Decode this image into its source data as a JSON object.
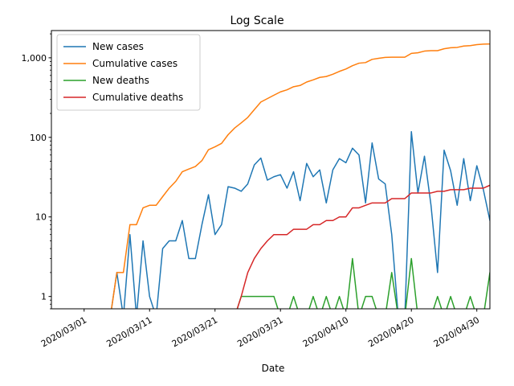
{
  "chart_data": {
    "type": "line",
    "title": "Log Scale",
    "xlabel": "Date",
    "ylabel": "",
    "yscale": "log",
    "xlim": [
      "2020-02-25",
      "2020-05-02"
    ],
    "ylim": [
      0.7,
      2200
    ],
    "x_ticks": [
      "2020/03/01",
      "2020/03/11",
      "2020/03/21",
      "2020/03/31",
      "2020/04/10",
      "2020/04/20",
      "2020/04/30"
    ],
    "y_ticks": [
      {
        "value": 1,
        "label": "1"
      },
      {
        "value": 10,
        "label": "10"
      },
      {
        "value": 100,
        "label": "100"
      },
      {
        "value": 1000,
        "label": "1,000"
      }
    ],
    "legend_position": "top-left",
    "grid": false,
    "series": [
      {
        "name": "New cases",
        "color": "#1f77b4",
        "points": [
          [
            "2020-03-05",
            0
          ],
          [
            "2020-03-06",
            2
          ],
          [
            "2020-03-07",
            0
          ],
          [
            "2020-03-08",
            6
          ],
          [
            "2020-03-09",
            0
          ],
          [
            "2020-03-10",
            5
          ],
          [
            "2020-03-11",
            1
          ],
          [
            "2020-03-12",
            0
          ],
          [
            "2020-03-13",
            4
          ],
          [
            "2020-03-14",
            5
          ],
          [
            "2020-03-15",
            5
          ],
          [
            "2020-03-16",
            9
          ],
          [
            "2020-03-17",
            3
          ],
          [
            "2020-03-18",
            3
          ],
          [
            "2020-03-19",
            8
          ],
          [
            "2020-03-20",
            19
          ],
          [
            "2020-03-21",
            6
          ],
          [
            "2020-03-22",
            8
          ],
          [
            "2020-03-23",
            24
          ],
          [
            "2020-03-24",
            23
          ],
          [
            "2020-03-25",
            21
          ],
          [
            "2020-03-26",
            26
          ],
          [
            "2020-03-27",
            45
          ],
          [
            "2020-03-28",
            55
          ],
          [
            "2020-03-29",
            29
          ],
          [
            "2020-03-30",
            32
          ],
          [
            "2020-03-31",
            34
          ],
          [
            "2020-04-01",
            23
          ],
          [
            "2020-04-02",
            37
          ],
          [
            "2020-04-03",
            16
          ],
          [
            "2020-04-04",
            47
          ],
          [
            "2020-04-05",
            32
          ],
          [
            "2020-04-06",
            39
          ],
          [
            "2020-04-07",
            15
          ],
          [
            "2020-04-08",
            39
          ],
          [
            "2020-04-09",
            54
          ],
          [
            "2020-04-10",
            48
          ],
          [
            "2020-04-11",
            73
          ],
          [
            "2020-04-12",
            60
          ],
          [
            "2020-04-13",
            15
          ],
          [
            "2020-04-14",
            85
          ],
          [
            "2020-04-15",
            30
          ],
          [
            "2020-04-16",
            26
          ],
          [
            "2020-04-17",
            6
          ],
          [
            "2020-04-18",
            0
          ],
          [
            "2020-04-19",
            0
          ],
          [
            "2020-04-20",
            118
          ],
          [
            "2020-04-21",
            20
          ],
          [
            "2020-04-22",
            58
          ],
          [
            "2020-04-23",
            14
          ],
          [
            "2020-04-24",
            2
          ],
          [
            "2020-04-25",
            69
          ],
          [
            "2020-04-26",
            38
          ],
          [
            "2020-04-27",
            14
          ],
          [
            "2020-04-28",
            54
          ],
          [
            "2020-04-29",
            16
          ],
          [
            "2020-04-30",
            44
          ],
          [
            "2020-05-01",
            22
          ],
          [
            "2020-05-02",
            9
          ],
          [
            "2020-05-03",
            24
          ]
        ]
      },
      {
        "name": "Cumulative cases",
        "color": "#ff7f0e",
        "points": [
          [
            "2020-03-05",
            0
          ],
          [
            "2020-03-06",
            2
          ],
          [
            "2020-03-07",
            2
          ],
          [
            "2020-03-08",
            8
          ],
          [
            "2020-03-09",
            8
          ],
          [
            "2020-03-10",
            13
          ],
          [
            "2020-03-11",
            14
          ],
          [
            "2020-03-12",
            14
          ],
          [
            "2020-03-13",
            18
          ],
          [
            "2020-03-14",
            23
          ],
          [
            "2020-03-15",
            28
          ],
          [
            "2020-03-16",
            37
          ],
          [
            "2020-03-17",
            40
          ],
          [
            "2020-03-18",
            43
          ],
          [
            "2020-03-19",
            51
          ],
          [
            "2020-03-20",
            70
          ],
          [
            "2020-03-21",
            76
          ],
          [
            "2020-03-22",
            84
          ],
          [
            "2020-03-23",
            108
          ],
          [
            "2020-03-24",
            131
          ],
          [
            "2020-03-25",
            152
          ],
          [
            "2020-03-26",
            178
          ],
          [
            "2020-03-27",
            223
          ],
          [
            "2020-03-28",
            278
          ],
          [
            "2020-03-29",
            307
          ],
          [
            "2020-03-30",
            339
          ],
          [
            "2020-03-31",
            373
          ],
          [
            "2020-04-01",
            396
          ],
          [
            "2020-04-02",
            433
          ],
          [
            "2020-04-03",
            449
          ],
          [
            "2020-04-04",
            496
          ],
          [
            "2020-04-05",
            528
          ],
          [
            "2020-04-06",
            567
          ],
          [
            "2020-04-07",
            582
          ],
          [
            "2020-04-08",
            621
          ],
          [
            "2020-04-09",
            675
          ],
          [
            "2020-04-10",
            723
          ],
          [
            "2020-04-11",
            796
          ],
          [
            "2020-04-12",
            856
          ],
          [
            "2020-04-13",
            871
          ],
          [
            "2020-04-14",
            956
          ],
          [
            "2020-04-15",
            986
          ],
          [
            "2020-04-16",
            1012
          ],
          [
            "2020-04-17",
            1018
          ],
          [
            "2020-04-18",
            1018
          ],
          [
            "2020-04-19",
            1018
          ],
          [
            "2020-04-20",
            1136
          ],
          [
            "2020-04-21",
            1156
          ],
          [
            "2020-04-22",
            1214
          ],
          [
            "2020-04-23",
            1228
          ],
          [
            "2020-04-24",
            1230
          ],
          [
            "2020-04-25",
            1299
          ],
          [
            "2020-04-26",
            1337
          ],
          [
            "2020-04-27",
            1351
          ],
          [
            "2020-04-28",
            1405
          ],
          [
            "2020-04-29",
            1421
          ],
          [
            "2020-04-30",
            1465
          ],
          [
            "2020-05-01",
            1487
          ],
          [
            "2020-05-02",
            1496
          ],
          [
            "2020-05-03",
            1520
          ]
        ]
      },
      {
        "name": "New deaths",
        "color": "#2ca02c",
        "points": [
          [
            "2020-03-24",
            0
          ],
          [
            "2020-03-25",
            1
          ],
          [
            "2020-03-26",
            1
          ],
          [
            "2020-03-27",
            1
          ],
          [
            "2020-03-28",
            1
          ],
          [
            "2020-03-29",
            1
          ],
          [
            "2020-03-30",
            1
          ],
          [
            "2020-03-31",
            0
          ],
          [
            "2020-04-01",
            0
          ],
          [
            "2020-04-02",
            1
          ],
          [
            "2020-04-03",
            0
          ],
          [
            "2020-04-04",
            0
          ],
          [
            "2020-04-05",
            1
          ],
          [
            "2020-04-06",
            0
          ],
          [
            "2020-04-07",
            1
          ],
          [
            "2020-04-08",
            0
          ],
          [
            "2020-04-09",
            1
          ],
          [
            "2020-04-10",
            0
          ],
          [
            "2020-04-11",
            3
          ],
          [
            "2020-04-12",
            0
          ],
          [
            "2020-04-13",
            1
          ],
          [
            "2020-04-14",
            1
          ],
          [
            "2020-04-15",
            0
          ],
          [
            "2020-04-16",
            0
          ],
          [
            "2020-04-17",
            2
          ],
          [
            "2020-04-18",
            0
          ],
          [
            "2020-04-19",
            0
          ],
          [
            "2020-04-20",
            3
          ],
          [
            "2020-04-21",
            0
          ],
          [
            "2020-04-22",
            0
          ],
          [
            "2020-04-23",
            0
          ],
          [
            "2020-04-24",
            1
          ],
          [
            "2020-04-25",
            0
          ],
          [
            "2020-04-26",
            1
          ],
          [
            "2020-04-27",
            0
          ],
          [
            "2020-04-28",
            0
          ],
          [
            "2020-04-29",
            1
          ],
          [
            "2020-04-30",
            0
          ],
          [
            "2020-05-01",
            0
          ],
          [
            "2020-05-02",
            2
          ],
          [
            "2020-05-03",
            3
          ]
        ]
      },
      {
        "name": "Cumulative deaths",
        "color": "#d62728",
        "points": [
          [
            "2020-03-24",
            0
          ],
          [
            "2020-03-25",
            1
          ],
          [
            "2020-03-26",
            2
          ],
          [
            "2020-03-27",
            3
          ],
          [
            "2020-03-28",
            4
          ],
          [
            "2020-03-29",
            5
          ],
          [
            "2020-03-30",
            6
          ],
          [
            "2020-03-31",
            6
          ],
          [
            "2020-04-01",
            6
          ],
          [
            "2020-04-02",
            7
          ],
          [
            "2020-04-03",
            7
          ],
          [
            "2020-04-04",
            7
          ],
          [
            "2020-04-05",
            8
          ],
          [
            "2020-04-06",
            8
          ],
          [
            "2020-04-07",
            9
          ],
          [
            "2020-04-08",
            9
          ],
          [
            "2020-04-09",
            10
          ],
          [
            "2020-04-10",
            10
          ],
          [
            "2020-04-11",
            13
          ],
          [
            "2020-04-12",
            13
          ],
          [
            "2020-04-13",
            14
          ],
          [
            "2020-04-14",
            15
          ],
          [
            "2020-04-15",
            15
          ],
          [
            "2020-04-16",
            15
          ],
          [
            "2020-04-17",
            17
          ],
          [
            "2020-04-18",
            17
          ],
          [
            "2020-04-19",
            17
          ],
          [
            "2020-04-20",
            20
          ],
          [
            "2020-04-21",
            20
          ],
          [
            "2020-04-22",
            20
          ],
          [
            "2020-04-23",
            20
          ],
          [
            "2020-04-24",
            21
          ],
          [
            "2020-04-25",
            21
          ],
          [
            "2020-04-26",
            22
          ],
          [
            "2020-04-27",
            22
          ],
          [
            "2020-04-28",
            22
          ],
          [
            "2020-04-29",
            23
          ],
          [
            "2020-04-30",
            23
          ],
          [
            "2020-05-01",
            23
          ],
          [
            "2020-05-02",
            25
          ],
          [
            "2020-05-03",
            28
          ]
        ]
      }
    ]
  }
}
